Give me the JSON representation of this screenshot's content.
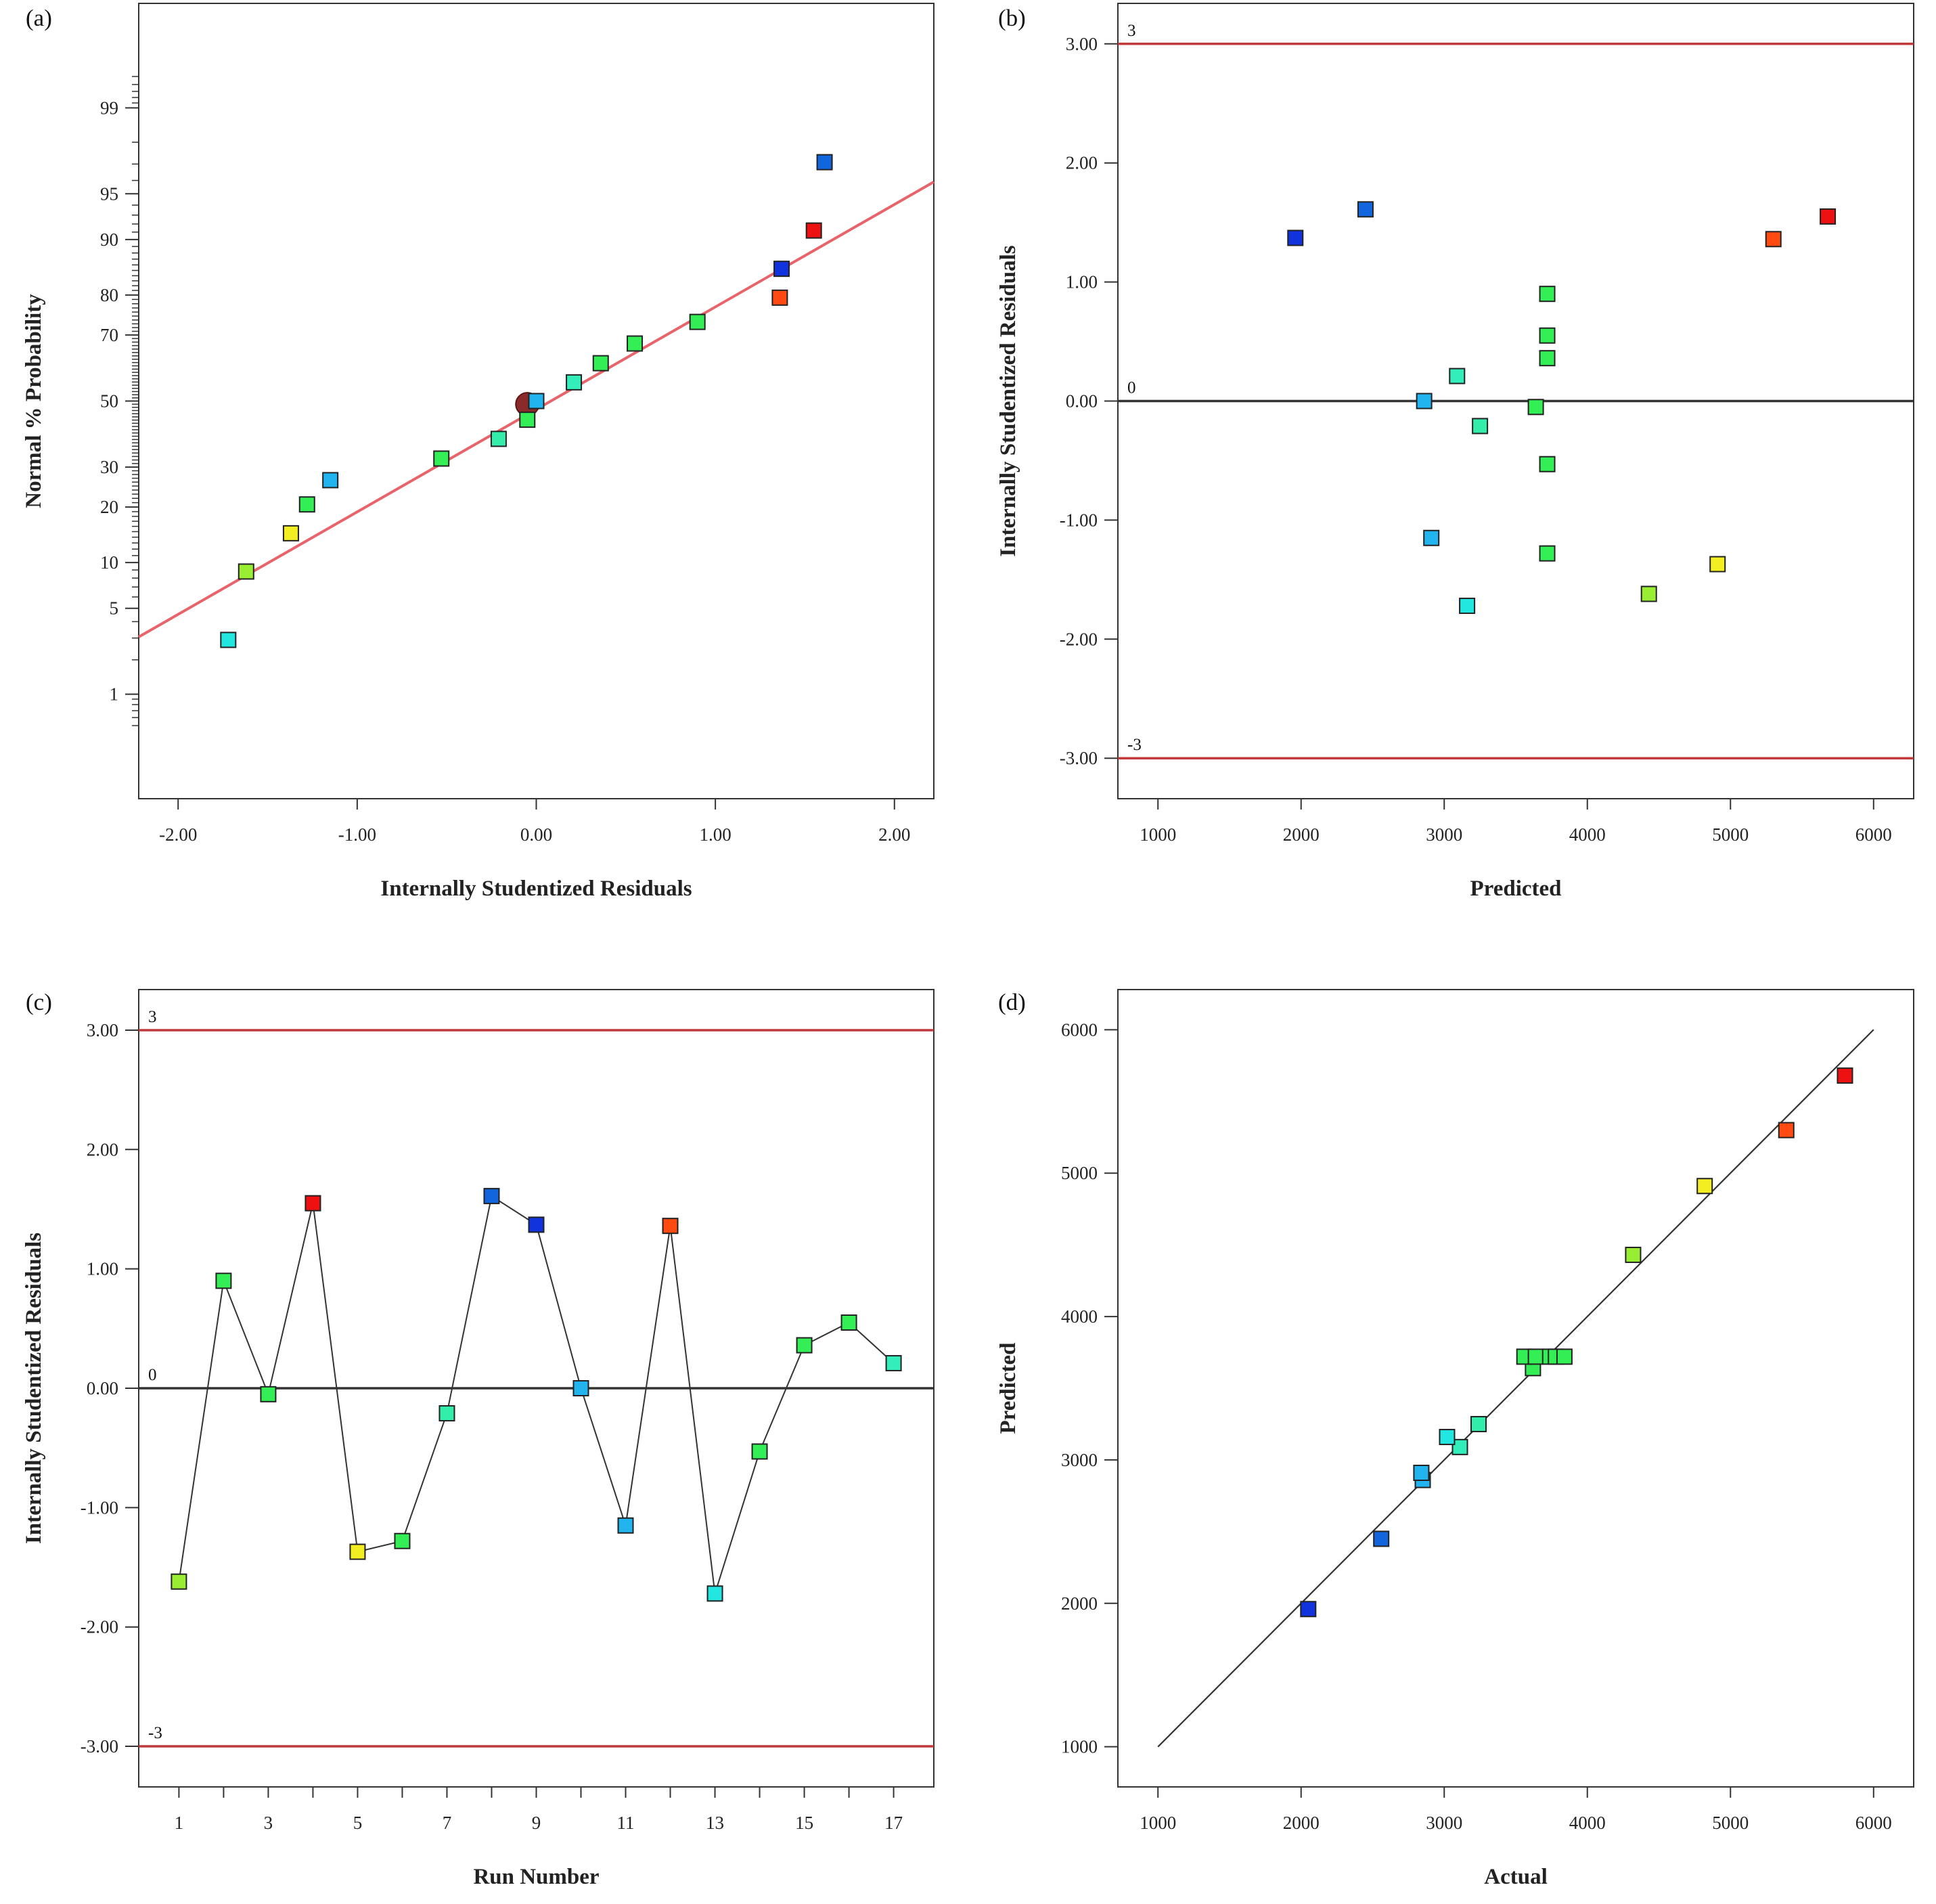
{
  "colors": {
    "ref_line": "#c0393b",
    "fit_line": "#e8636a",
    "zero_line": "#333333",
    "frame": "#333333",
    "mean_marker": "#8b2a2a"
  },
  "chart_data": [
    {
      "id": "a",
      "type": "scatter",
      "panel_label": "(a)",
      "xlabel": "Internally Studentized Residuals",
      "ylabel": "Normal % Probability",
      "xlim": [
        -2.22,
        2.22
      ],
      "x_ticks": [
        -2,
        -1,
        0,
        1,
        2
      ],
      "x_tick_labels": [
        "-2.00",
        "-1.00",
        "0.00",
        "1.00",
        "2.00"
      ],
      "y_scale": "normal-probability",
      "ylim": [
        0.08,
        99.92
      ],
      "y_ticks": [
        1,
        5,
        10,
        20,
        30,
        50,
        70,
        80,
        90,
        95,
        99
      ],
      "y_tick_labels": [
        "1",
        "5",
        "10",
        "20",
        "30",
        "50",
        "70",
        "80",
        "90",
        "95",
        "99"
      ],
      "fit_line": {
        "x": [
          -2.22,
          2.22
        ],
        "y": [
          3.06,
          95.9
        ]
      },
      "mean_marker": {
        "x": -0.05,
        "y": 49
      },
      "points": [
        {
          "x": -1.72,
          "y": 2.9,
          "color": "#22e6e0"
        },
        {
          "x": -1.62,
          "y": 8.8,
          "color": "#99ee33"
        },
        {
          "x": -1.37,
          "y": 14.7,
          "color": "#f2ee22"
        },
        {
          "x": -1.28,
          "y": 20.6,
          "color": "#33ee55"
        },
        {
          "x": -1.15,
          "y": 26.5,
          "color": "#22b4ee"
        },
        {
          "x": -0.53,
          "y": 32.4,
          "color": "#33ee55"
        },
        {
          "x": -0.21,
          "y": 38.2,
          "color": "#33eeaa"
        },
        {
          "x": -0.05,
          "y": 44.1,
          "color": "#33ee55"
        },
        {
          "x": 0.0,
          "y": 50.0,
          "color": "#22b4ee"
        },
        {
          "x": 0.21,
          "y": 55.9,
          "color": "#33eebb"
        },
        {
          "x": 0.36,
          "y": 61.8,
          "color": "#33ee55"
        },
        {
          "x": 0.55,
          "y": 67.6,
          "color": "#33ee55"
        },
        {
          "x": 0.9,
          "y": 73.5,
          "color": "#33ee55"
        },
        {
          "x": 1.36,
          "y": 79.4,
          "color": "#ff4a11"
        },
        {
          "x": 1.37,
          "y": 85.3,
          "color": "#1133dd"
        },
        {
          "x": 1.55,
          "y": 91.2,
          "color": "#ee1111"
        },
        {
          "x": 1.61,
          "y": 97.1,
          "color": "#1166dd"
        }
      ]
    },
    {
      "id": "b",
      "type": "scatter",
      "panel_label": "(b)",
      "xlabel": "Predicted",
      "ylabel": "Internally Studentized Residuals",
      "xlim": [
        720,
        6280
      ],
      "ylim": [
        -3.34,
        3.34
      ],
      "x_ticks": [
        1000,
        2000,
        3000,
        4000,
        5000,
        6000
      ],
      "x_tick_labels": [
        "1000",
        "2000",
        "3000",
        "4000",
        "5000",
        "6000"
      ],
      "y_ticks": [
        3,
        2,
        1,
        0,
        -1,
        -2,
        -3
      ],
      "y_tick_labels": [
        "3.00",
        "2.00",
        "1.00",
        "0.00",
        "-1.00",
        "-2.00",
        "-3.00"
      ],
      "ref_lines": [
        {
          "y": 3,
          "label": "3"
        },
        {
          "y": -3,
          "label": "-3"
        }
      ],
      "zero_line": {
        "y": 0,
        "label": "0"
      },
      "points": [
        {
          "x": 1960,
          "y": 1.37,
          "color": "#1133dd"
        },
        {
          "x": 2450,
          "y": 1.61,
          "color": "#1166dd"
        },
        {
          "x": 2860,
          "y": 0.0,
          "color": "#22b4ee"
        },
        {
          "x": 2910,
          "y": -1.15,
          "color": "#22b4ee"
        },
        {
          "x": 3090,
          "y": 0.21,
          "color": "#33eebb"
        },
        {
          "x": 3160,
          "y": -1.72,
          "color": "#22e6e0"
        },
        {
          "x": 3250,
          "y": -0.21,
          "color": "#33eeaa"
        },
        {
          "x": 3640,
          "y": -0.05,
          "color": "#33ee55"
        },
        {
          "x": 3720,
          "y": 0.9,
          "color": "#33ee55"
        },
        {
          "x": 3720,
          "y": 0.55,
          "color": "#33ee55"
        },
        {
          "x": 3720,
          "y": 0.36,
          "color": "#33ee55"
        },
        {
          "x": 3720,
          "y": -0.53,
          "color": "#33ee55"
        },
        {
          "x": 3720,
          "y": -1.28,
          "color": "#33ee55"
        },
        {
          "x": 4430,
          "y": -1.62,
          "color": "#99ee33"
        },
        {
          "x": 4910,
          "y": -1.37,
          "color": "#f2ee22"
        },
        {
          "x": 5300,
          "y": 1.36,
          "color": "#ff4a11"
        },
        {
          "x": 5680,
          "y": 1.55,
          "color": "#ee1111"
        }
      ]
    },
    {
      "id": "c",
      "type": "line",
      "panel_label": "(c)",
      "xlabel": "Run Number",
      "ylabel": "Internally Studentized Residuals",
      "xlim": [
        0.1,
        17.9
      ],
      "ylim": [
        -3.34,
        3.34
      ],
      "x_ticks": [
        1,
        3,
        5,
        7,
        9,
        11,
        13,
        15,
        17
      ],
      "x_tick_labels": [
        "1",
        "3",
        "5",
        "7",
        "9",
        "11",
        "13",
        "15",
        "17"
      ],
      "x_minor_ticks": [
        2,
        4,
        6,
        8,
        10,
        12,
        14,
        16
      ],
      "y_ticks": [
        3,
        2,
        1,
        0,
        -1,
        -2,
        -3
      ],
      "y_tick_labels": [
        "3.00",
        "2.00",
        "1.00",
        "0.00",
        "-1.00",
        "-2.00",
        "-3.00"
      ],
      "ref_lines": [
        {
          "y": 3,
          "label": "3"
        },
        {
          "y": -3,
          "label": "-3"
        }
      ],
      "zero_line": {
        "y": 0,
        "label": "0"
      },
      "points": [
        {
          "x": 1,
          "y": -1.62,
          "color": "#99ee33"
        },
        {
          "x": 2,
          "y": 0.9,
          "color": "#33ee55"
        },
        {
          "x": 3,
          "y": -0.05,
          "color": "#33ee55"
        },
        {
          "x": 4,
          "y": 1.55,
          "color": "#ee1111"
        },
        {
          "x": 5,
          "y": -1.37,
          "color": "#f2ee22"
        },
        {
          "x": 6,
          "y": -1.28,
          "color": "#33ee55"
        },
        {
          "x": 7,
          "y": -0.21,
          "color": "#33eeaa"
        },
        {
          "x": 8,
          "y": 1.61,
          "color": "#1166dd"
        },
        {
          "x": 9,
          "y": 1.37,
          "color": "#1133dd"
        },
        {
          "x": 10,
          "y": 0.0,
          "color": "#22b4ee"
        },
        {
          "x": 11,
          "y": -1.15,
          "color": "#22b4ee"
        },
        {
          "x": 12,
          "y": 1.36,
          "color": "#ff4a11"
        },
        {
          "x": 13,
          "y": -1.72,
          "color": "#22e6e0"
        },
        {
          "x": 14,
          "y": -0.53,
          "color": "#33ee55"
        },
        {
          "x": 15,
          "y": 0.36,
          "color": "#33ee55"
        },
        {
          "x": 16,
          "y": 0.55,
          "color": "#33ee55"
        },
        {
          "x": 17,
          "y": 0.21,
          "color": "#33eebb"
        }
      ]
    },
    {
      "id": "d",
      "type": "scatter",
      "panel_label": "(d)",
      "xlabel": "Actual",
      "ylabel": "Predicted",
      "xlim": [
        720,
        6280
      ],
      "ylim": [
        720,
        6280
      ],
      "x_ticks": [
        1000,
        2000,
        3000,
        4000,
        5000,
        6000
      ],
      "x_tick_labels": [
        "1000",
        "2000",
        "3000",
        "4000",
        "5000",
        "6000"
      ],
      "y_ticks": [
        6000,
        5000,
        4000,
        3000,
        2000,
        1000
      ],
      "y_tick_labels": [
        "6000",
        "5000",
        "4000",
        "3000",
        "2000",
        "1000"
      ],
      "fit_line": {
        "x": [
          1000,
          6000
        ],
        "y": [
          1000,
          6000
        ]
      },
      "points": [
        {
          "x": 2050,
          "y": 1960,
          "color": "#1133dd"
        },
        {
          "x": 2560,
          "y": 2450,
          "color": "#1166dd"
        },
        {
          "x": 2850,
          "y": 2860,
          "color": "#22b4ee"
        },
        {
          "x": 2840,
          "y": 2910,
          "color": "#22b4ee"
        },
        {
          "x": 3110,
          "y": 3090,
          "color": "#33eebb"
        },
        {
          "x": 3020,
          "y": 3160,
          "color": "#22e6e0"
        },
        {
          "x": 3240,
          "y": 3250,
          "color": "#33eeaa"
        },
        {
          "x": 3620,
          "y": 3640,
          "color": "#33ee55"
        },
        {
          "x": 3560,
          "y": 3720,
          "color": "#33ee55"
        },
        {
          "x": 3640,
          "y": 3720,
          "color": "#33ee55"
        },
        {
          "x": 3740,
          "y": 3720,
          "color": "#33ee55"
        },
        {
          "x": 3780,
          "y": 3720,
          "color": "#33ee55"
        },
        {
          "x": 3840,
          "y": 3720,
          "color": "#33ee55"
        },
        {
          "x": 4320,
          "y": 4430,
          "color": "#99ee33"
        },
        {
          "x": 4820,
          "y": 4910,
          "color": "#f2ee22"
        },
        {
          "x": 5390,
          "y": 5300,
          "color": "#ff4a11"
        },
        {
          "x": 5800,
          "y": 5680,
          "color": "#ee1111"
        }
      ]
    }
  ]
}
